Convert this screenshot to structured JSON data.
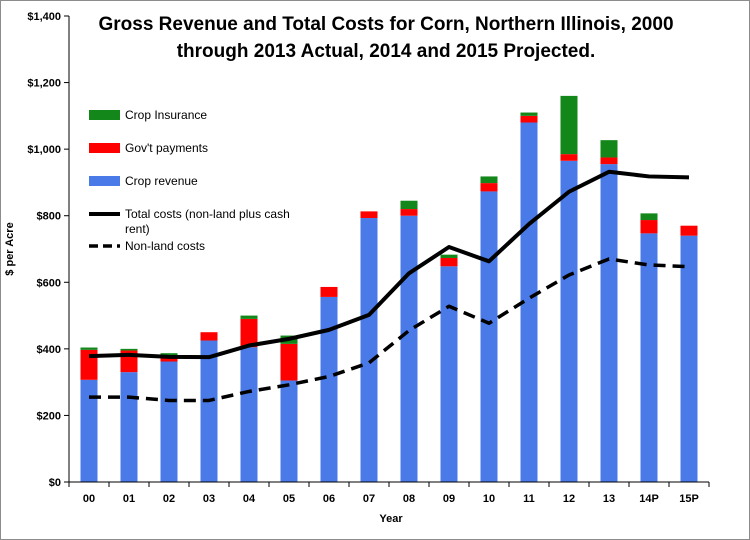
{
  "chart_data": {
    "type": "bar",
    "title_line1": "Gross Revenue and Total Costs for Corn, Northern Illinois, 2000",
    "title_line2": "through 2013 Actual, 2014 and 2015 Projected.",
    "xlabel": "Year",
    "ylabel": "$ per Acre",
    "ylim": [
      0,
      1400
    ],
    "y_ticks": [
      0,
      200,
      400,
      600,
      800,
      1000,
      1200,
      1400
    ],
    "y_tick_labels": [
      "$0",
      "$200",
      "$400",
      "$600",
      "$800",
      "$1,000",
      "$1,200",
      "$1,400"
    ],
    "categories": [
      "00",
      "01",
      "02",
      "03",
      "04",
      "05",
      "06",
      "07",
      "08",
      "09",
      "10",
      "11",
      "12",
      "13",
      "14P",
      "15P"
    ],
    "stacked": true,
    "grid": false,
    "legend_position": "top-left",
    "series": [
      {
        "name": "Crop revenue",
        "kind": "bar",
        "color": "#4a7ae8",
        "values": [
          307,
          330,
          362,
          425,
          405,
          305,
          556,
          793,
          800,
          648,
          873,
          1080,
          965,
          955,
          747,
          740
        ]
      },
      {
        "name": "Gov't payments",
        "kind": "bar",
        "color": "#ff0000",
        "values": [
          90,
          65,
          15,
          25,
          85,
          110,
          30,
          20,
          20,
          25,
          25,
          20,
          20,
          20,
          40,
          30
        ]
      },
      {
        "name": "Crop Insurance",
        "kind": "bar",
        "color": "#13871a",
        "values": [
          7,
          5,
          10,
          0,
          10,
          25,
          0,
          0,
          25,
          10,
          20,
          10,
          175,
          52,
          20,
          0
        ]
      },
      {
        "name": "Total costs (non-land plus cash rent)",
        "kind": "line",
        "style": "solid",
        "color": "#000000",
        "values": [
          378,
          382,
          376,
          375,
          410,
          430,
          457,
          502,
          627,
          706,
          663,
          775,
          872,
          932,
          918,
          915
        ]
      },
      {
        "name": "Non-land costs",
        "kind": "line",
        "style": "dashed",
        "color": "#000000",
        "values": [
          255,
          255,
          245,
          245,
          272,
          292,
          317,
          358,
          455,
          528,
          477,
          552,
          622,
          670,
          652,
          647
        ]
      }
    ]
  }
}
